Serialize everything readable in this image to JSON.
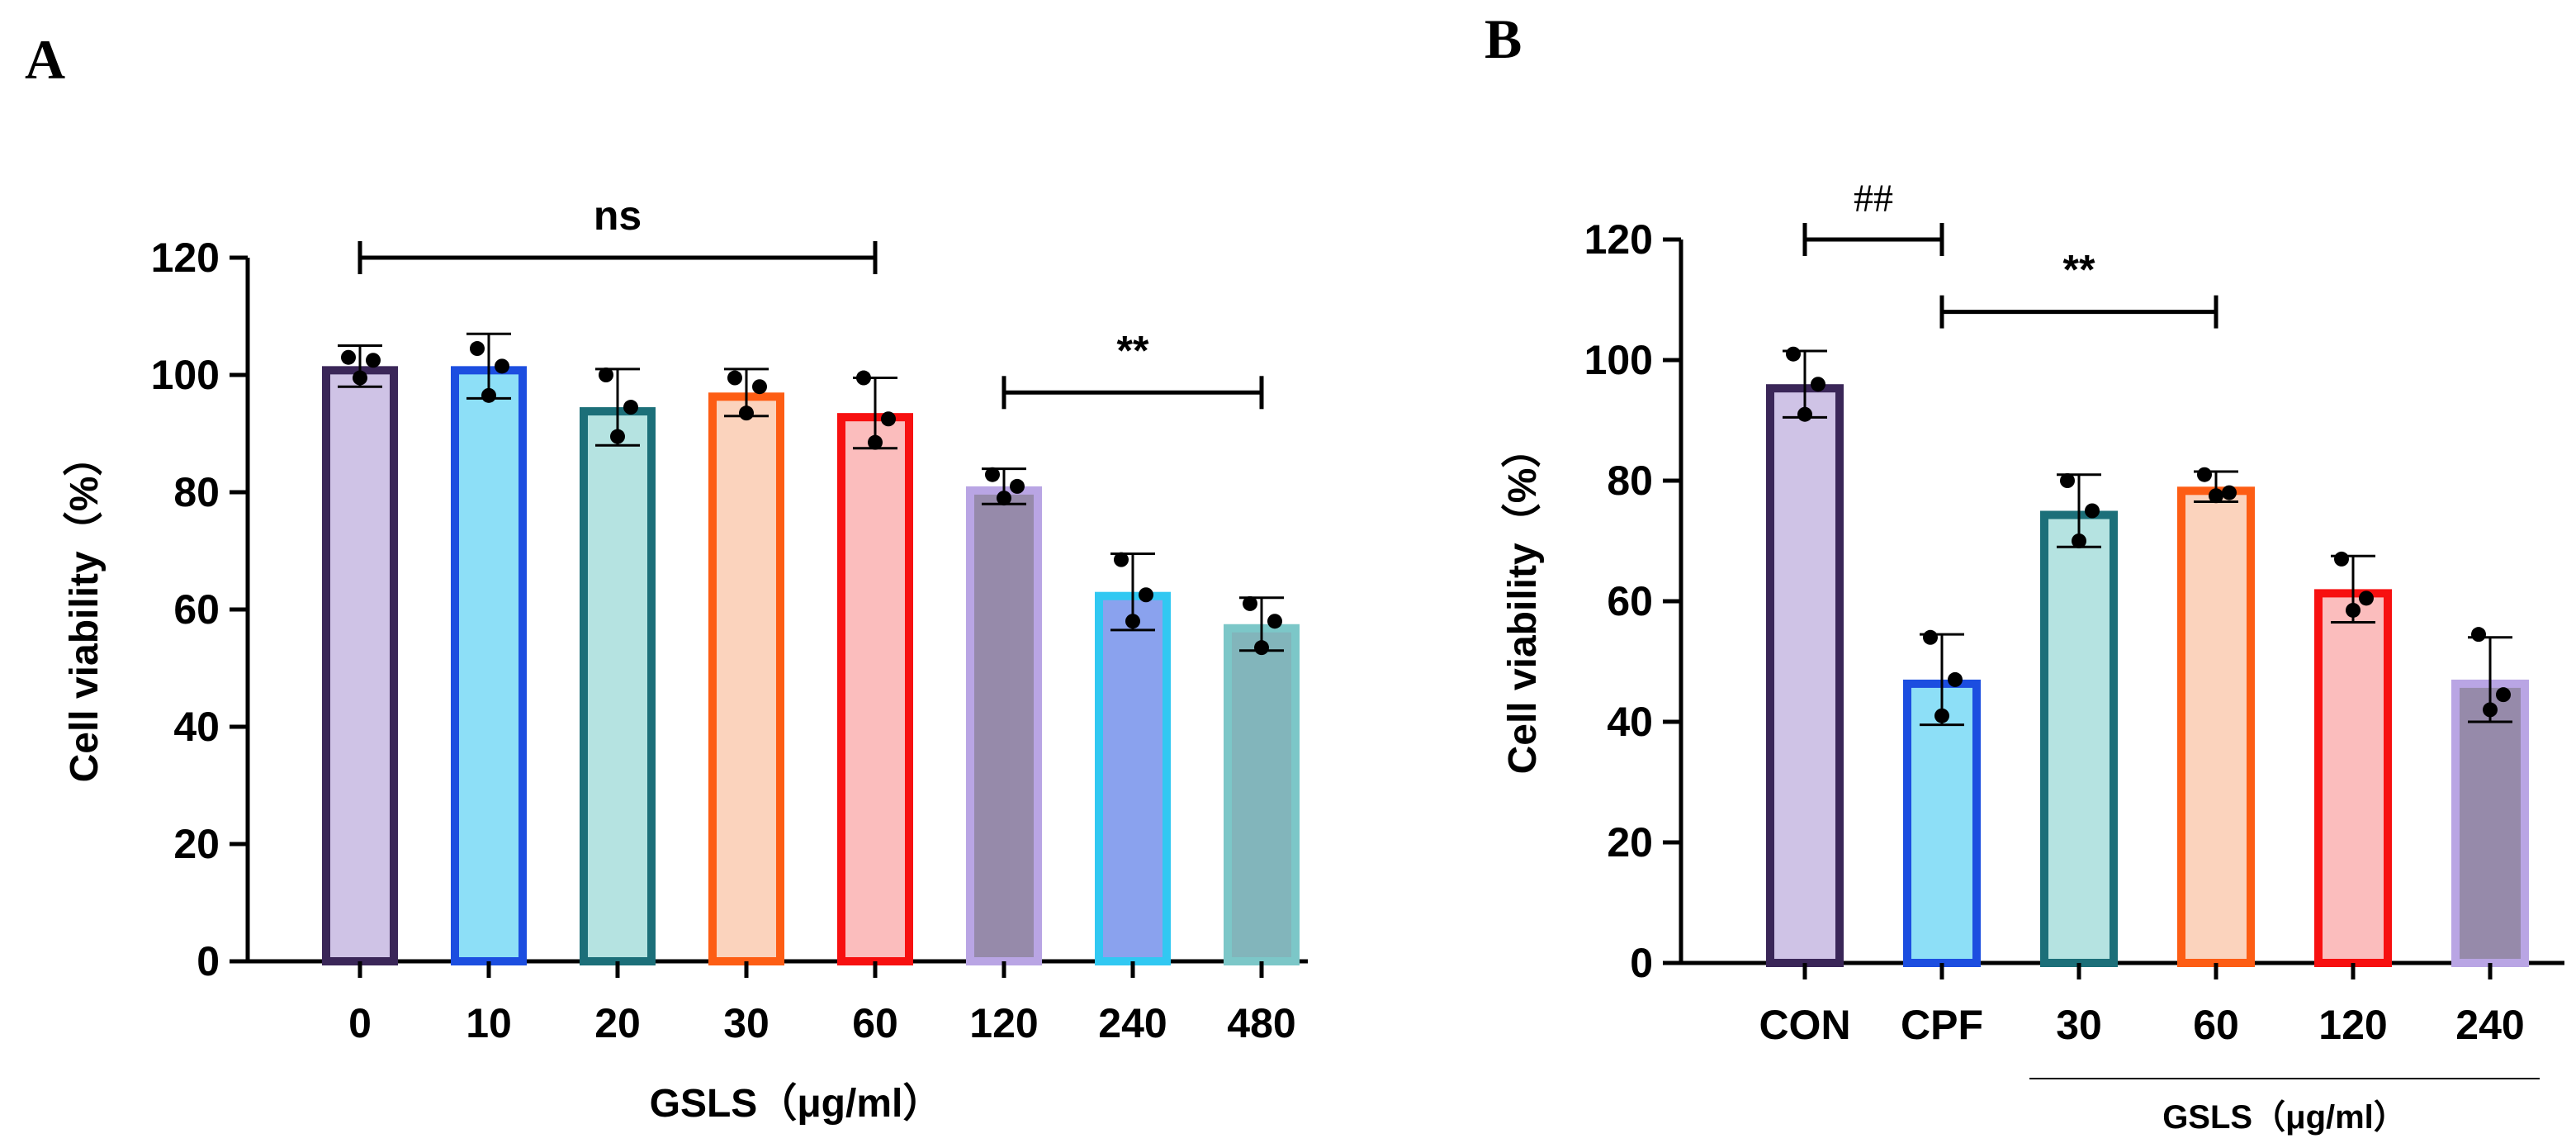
{
  "chart_data": [
    {
      "panel": "A",
      "type": "bar",
      "xlabel": "GSLS（μg/ml）",
      "ylabel": "Cell viability（%）",
      "ylim": [
        0,
        120
      ],
      "yticks": [
        0,
        20,
        40,
        60,
        80,
        100,
        120
      ],
      "categories": [
        "0",
        "10",
        "20",
        "30",
        "60",
        "120",
        "240",
        "480"
      ],
      "values": [
        101.5,
        101.5,
        94.5,
        97,
        93.5,
        81,
        63,
        57.5
      ],
      "error": [
        3.5,
        5.5,
        6.5,
        4,
        6,
        3,
        6.5,
        4.5
      ],
      "points": [
        [
          103,
          99.5,
          102.5
        ],
        [
          104.5,
          96.5,
          101.5
        ],
        [
          100,
          89.5,
          94.5
        ],
        [
          99.5,
          93.5,
          98
        ],
        [
          99.5,
          88.5,
          92.5
        ],
        [
          83,
          79,
          81
        ],
        [
          68.5,
          58,
          62.5
        ],
        [
          61,
          53.5,
          58
        ]
      ],
      "fill_colors": [
        "#cfc3e6",
        "#8ddff7",
        "#b5e3e1",
        "#fbd3bd",
        "#fbbdbd",
        "#968aaa",
        "#8aa2ee",
        "#82b5bb"
      ],
      "stroke_colors": [
        "#3a2658",
        "#1c4ee0",
        "#1c6f79",
        "#fd5d14",
        "#f71010",
        "#b9a5e4",
        "#31c8f2",
        "#7cc7c8"
      ],
      "annotations": [
        {
          "text": "ns",
          "from": 0,
          "to": 4,
          "y": 120
        },
        {
          "text": "**",
          "from": 5,
          "to": 7,
          "y": 97
        }
      ]
    },
    {
      "panel": "B",
      "type": "bar",
      "xlabel": "",
      "group_label": "GSLS（μg/ml）",
      "group_from": 2,
      "group_to": 5,
      "ylabel": "Cell viability（%）",
      "ylim": [
        0,
        120
      ],
      "yticks": [
        0,
        20,
        40,
        60,
        80,
        100,
        120
      ],
      "categories": [
        "CON",
        "CPF",
        "30",
        "60",
        "120",
        "240"
      ],
      "values": [
        96,
        47,
        75,
        79,
        62,
        47
      ],
      "error": [
        5.5,
        7.5,
        6,
        2.5,
        5.5,
        7
      ],
      "points": [
        [
          101,
          91,
          96
        ],
        [
          54,
          41,
          47
        ],
        [
          80,
          70,
          75
        ],
        [
          81,
          77.5,
          78
        ],
        [
          67,
          58.5,
          60.5
        ],
        [
          54.5,
          42,
          44.5
        ]
      ],
      "fill_colors": [
        "#cfc3e6",
        "#8ddff7",
        "#b5e3e1",
        "#fbd3bd",
        "#fbbdbd",
        "#968aaa"
      ],
      "stroke_colors": [
        "#3a2658",
        "#1c4ee0",
        "#1c6f79",
        "#fd5d14",
        "#f71010",
        "#b9a5e4"
      ],
      "annotations": [
        {
          "text": "##",
          "from": 0,
          "to": 1,
          "y": 120
        },
        {
          "text": "**",
          "from": 1,
          "to": 3,
          "y": 108
        }
      ]
    }
  ]
}
